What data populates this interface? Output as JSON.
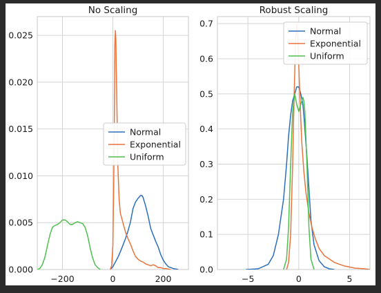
{
  "chart_data": [
    {
      "type": "line",
      "title": "No Scaling",
      "xlabel": "",
      "ylabel": "",
      "xlim": [
        -300,
        300
      ],
      "ylim": [
        0,
        0.027
      ],
      "xticks": [
        -200,
        0,
        200
      ],
      "xtick_labels": [
        "−200",
        "0",
        "200"
      ],
      "yticks": [
        0,
        0.005,
        0.01,
        0.015,
        0.02,
        0.025
      ],
      "ytick_labels": [
        "0.000",
        "0.005",
        "0.010",
        "0.015",
        "0.020",
        "0.025"
      ],
      "grid": true,
      "legend": "center-right",
      "series": [
        {
          "name": "Normal",
          "color": "#2a6ebb",
          "points": [
            [
              -10,
              0
            ],
            [
              0,
              0.0003
            ],
            [
              10,
              0.0008
            ],
            [
              20,
              0.0013
            ],
            [
              30,
              0.0019
            ],
            [
              40,
              0.0026
            ],
            [
              50,
              0.0033
            ],
            [
              60,
              0.0041
            ],
            [
              70,
              0.0051
            ],
            [
              80,
              0.0065
            ],
            [
              90,
              0.0072
            ],
            [
              100,
              0.0076
            ],
            [
              110,
              0.0079
            ],
            [
              115,
              0.0079
            ],
            [
              120,
              0.0077
            ],
            [
              130,
              0.0068
            ],
            [
              140,
              0.0057
            ],
            [
              150,
              0.0044
            ],
            [
              160,
              0.0037
            ],
            [
              170,
              0.003
            ],
            [
              180,
              0.0024
            ],
            [
              190,
              0.0016
            ],
            [
              200,
              0.001
            ],
            [
              210,
              0.0006
            ],
            [
              220,
              0.0003
            ],
            [
              240,
              0.0001
            ],
            [
              260,
              0
            ]
          ]
        },
        {
          "name": "Exponential",
          "color": "#e8743b",
          "points": [
            [
              -10,
              0
            ],
            [
              -5,
              0.0004
            ],
            [
              0,
              0.0025
            ],
            [
              3,
              0.008
            ],
            [
              5,
              0.013
            ],
            [
              7,
              0.02
            ],
            [
              8,
              0.024
            ],
            [
              10,
              0.0255
            ],
            [
              12,
              0.0245
            ],
            [
              14,
              0.021
            ],
            [
              17,
              0.016
            ],
            [
              20,
              0.011
            ],
            [
              25,
              0.0075
            ],
            [
              30,
              0.006
            ],
            [
              35,
              0.0055
            ],
            [
              40,
              0.005
            ],
            [
              45,
              0.0045
            ],
            [
              50,
              0.004
            ],
            [
              60,
              0.0033
            ],
            [
              70,
              0.0027
            ],
            [
              80,
              0.002
            ],
            [
              90,
              0.0014
            ],
            [
              100,
              0.0011
            ],
            [
              110,
              0.0009
            ],
            [
              120,
              0.0008
            ],
            [
              130,
              0.0006
            ],
            [
              140,
              0.0005
            ],
            [
              150,
              0.0004
            ],
            [
              160,
              0.0005
            ],
            [
              170,
              0.0004
            ],
            [
              180,
              0.0002
            ],
            [
              190,
              0.0002
            ],
            [
              200,
              0.0001
            ],
            [
              210,
              0.0001
            ],
            [
              230,
              0
            ]
          ]
        },
        {
          "name": "Uniform",
          "color": "#4cbf4c",
          "points": [
            [
              -300,
              0
            ],
            [
              -290,
              0.0001
            ],
            [
              -280,
              0.0005
            ],
            [
              -270,
              0.0013
            ],
            [
              -260,
              0.0025
            ],
            [
              -250,
              0.0037
            ],
            [
              -240,
              0.0045
            ],
            [
              -230,
              0.0047
            ],
            [
              -220,
              0.0048
            ],
            [
              -210,
              0.005
            ],
            [
              -200,
              0.0053
            ],
            [
              -190,
              0.0053
            ],
            [
              -180,
              0.0051
            ],
            [
              -170,
              0.0048
            ],
            [
              -160,
              0.0048
            ],
            [
              -150,
              0.005
            ],
            [
              -140,
              0.0051
            ],
            [
              -130,
              0.005
            ],
            [
              -120,
              0.0049
            ],
            [
              -110,
              0.0045
            ],
            [
              -100,
              0.0036
            ],
            [
              -90,
              0.0023
            ],
            [
              -80,
              0.0012
            ],
            [
              -70,
              0.0005
            ],
            [
              -60,
              0.0002
            ],
            [
              -50,
              0
            ]
          ]
        }
      ]
    },
    {
      "type": "line",
      "title": "Robust Scaling",
      "xlabel": "",
      "ylabel": "",
      "xlim": [
        -8,
        7
      ],
      "ylim": [
        0,
        0.72
      ],
      "xticks": [
        -5,
        0,
        5
      ],
      "xtick_labels": [
        "−5",
        "0",
        "5"
      ],
      "yticks": [
        0,
        0.1,
        0.2,
        0.3,
        0.4,
        0.5,
        0.6,
        0.7
      ],
      "ytick_labels": [
        "0.0",
        "0.1",
        "0.2",
        "0.3",
        "0.4",
        "0.5",
        "0.6",
        "0.7"
      ],
      "grid": true,
      "legend": "top-right",
      "series": [
        {
          "name": "Normal",
          "color": "#2a6ebb",
          "points": [
            [
              -5.2,
              0
            ],
            [
              -4,
              0.002
            ],
            [
              -3,
              0.015
            ],
            [
              -2.5,
              0.04
            ],
            [
              -2,
              0.1
            ],
            [
              -1.5,
              0.2
            ],
            [
              -1.2,
              0.3
            ],
            [
              -1,
              0.38
            ],
            [
              -0.8,
              0.44
            ],
            [
              -0.6,
              0.48
            ],
            [
              -0.4,
              0.5
            ],
            [
              -0.2,
              0.52
            ],
            [
              0,
              0.52
            ],
            [
              0.2,
              0.5
            ],
            [
              0.4,
              0.47
            ],
            [
              0.5,
              0.44
            ],
            [
              0.6,
              0.4
            ],
            [
              0.8,
              0.32
            ],
            [
              1,
              0.23
            ],
            [
              1.2,
              0.14
            ],
            [
              1.5,
              0.07
            ],
            [
              2,
              0.025
            ],
            [
              2.5,
              0.008
            ],
            [
              3,
              0.002
            ],
            [
              3.5,
              0
            ]
          ]
        },
        {
          "name": "Exponential",
          "color": "#e8743b",
          "points": [
            [
              -1.2,
              0
            ],
            [
              -1,
              0.02
            ],
            [
              -0.8,
              0.1
            ],
            [
              -0.6,
              0.3
            ],
            [
              -0.45,
              0.5
            ],
            [
              -0.3,
              0.66
            ],
            [
              -0.2,
              0.7
            ],
            [
              -0.1,
              0.66
            ],
            [
              0,
              0.58
            ],
            [
              0.15,
              0.46
            ],
            [
              0.3,
              0.36
            ],
            [
              0.5,
              0.28
            ],
            [
              0.7,
              0.22
            ],
            [
              1,
              0.16
            ],
            [
              1.3,
              0.12
            ],
            [
              1.6,
              0.09
            ],
            [
              2,
              0.06
            ],
            [
              2.5,
              0.04
            ],
            [
              3,
              0.03
            ],
            [
              3.5,
              0.02
            ],
            [
              4,
              0.015
            ],
            [
              4.5,
              0.01
            ],
            [
              5,
              0.007
            ],
            [
              5.5,
              0.004
            ],
            [
              6,
              0.003
            ],
            [
              6.5,
              0.002
            ],
            [
              7,
              0
            ]
          ]
        },
        {
          "name": "Uniform",
          "color": "#4cbf4c",
          "points": [
            [
              -1.5,
              0
            ],
            [
              -1.2,
              0.03
            ],
            [
              -1,
              0.12
            ],
            [
              -0.8,
              0.3
            ],
            [
              -0.6,
              0.45
            ],
            [
              -0.4,
              0.5
            ],
            [
              -0.2,
              0.47
            ],
            [
              0,
              0.45
            ],
            [
              0.2,
              0.47
            ],
            [
              0.4,
              0.49
            ],
            [
              0.5,
              0.48
            ],
            [
              0.6,
              0.45
            ],
            [
              0.8,
              0.3
            ],
            [
              1,
              0.12
            ],
            [
              1.2,
              0.03
            ],
            [
              1.5,
              0
            ]
          ]
        }
      ]
    }
  ]
}
